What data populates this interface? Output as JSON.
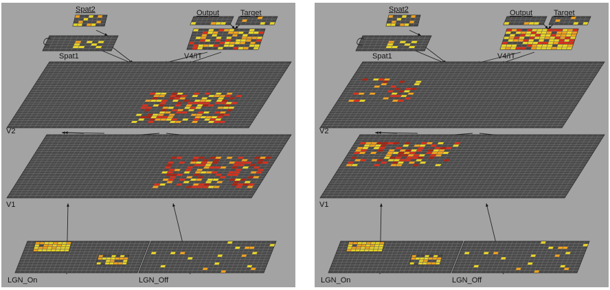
{
  "layers": {
    "spat2": "Spat2",
    "spat1": "Spat1",
    "output": "Output",
    "target": "Target",
    "v4it": "V4/IT",
    "v2": "V2",
    "v1": "V1",
    "lgn_on": "LGN_On",
    "lgn_off": "LGN_Off"
  },
  "colors": {
    "background": "#a3a3a3",
    "inactive_unit": "#4a4a4a",
    "grid_line": "#bdbdbd",
    "unit_yellow": "#e8d52a",
    "unit_orange": "#f0a21e",
    "unit_red": "#d8301c",
    "unit_darkred": "#a82414"
  },
  "panels": [
    {
      "id": "left",
      "active_region": "right"
    },
    {
      "id": "right",
      "active_region": "left"
    }
  ]
}
